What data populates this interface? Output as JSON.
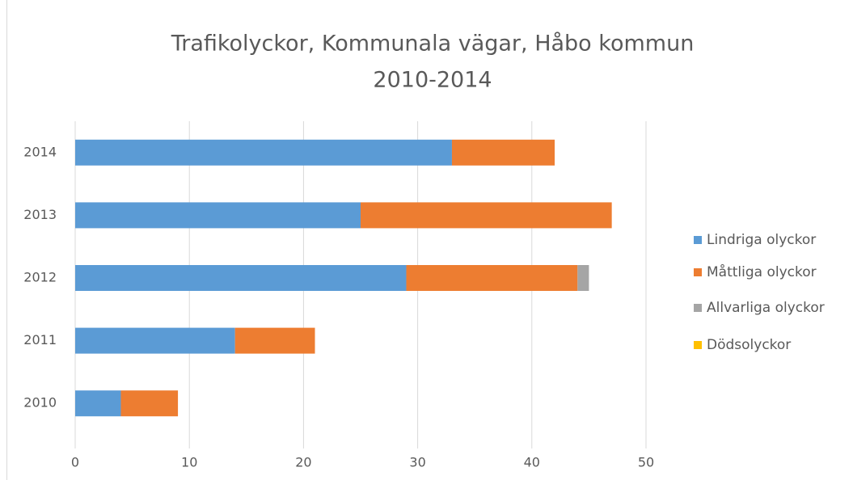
{
  "chart_data": {
    "type": "stacked_barh",
    "title": [
      "Trafikolyckor, Kommunala vägar, Håbo kommun",
      "2010-2014"
    ],
    "categories": [
      "2010",
      "2011",
      "2012",
      "2013",
      "2014"
    ],
    "series": [
      {
        "name": "Lindriga olyckor",
        "color": "#5b9bd5",
        "values": [
          4,
          14,
          29,
          25,
          33
        ]
      },
      {
        "name": "Måttliga olyckor",
        "color": "#ed7d31",
        "values": [
          5,
          7,
          15,
          22,
          9
        ]
      },
      {
        "name": "Allvarliga olyckor",
        "color": "#a5a5a5",
        "values": [
          0,
          0,
          1,
          0,
          0
        ]
      },
      {
        "name": "Dödsolyckor",
        "color": "#ffc000",
        "values": [
          0,
          0,
          0,
          0,
          0
        ]
      }
    ],
    "xlim": [
      0,
      50
    ],
    "xticks": [
      0,
      10,
      20,
      30,
      40,
      50
    ],
    "grid": true,
    "legend": "right"
  }
}
